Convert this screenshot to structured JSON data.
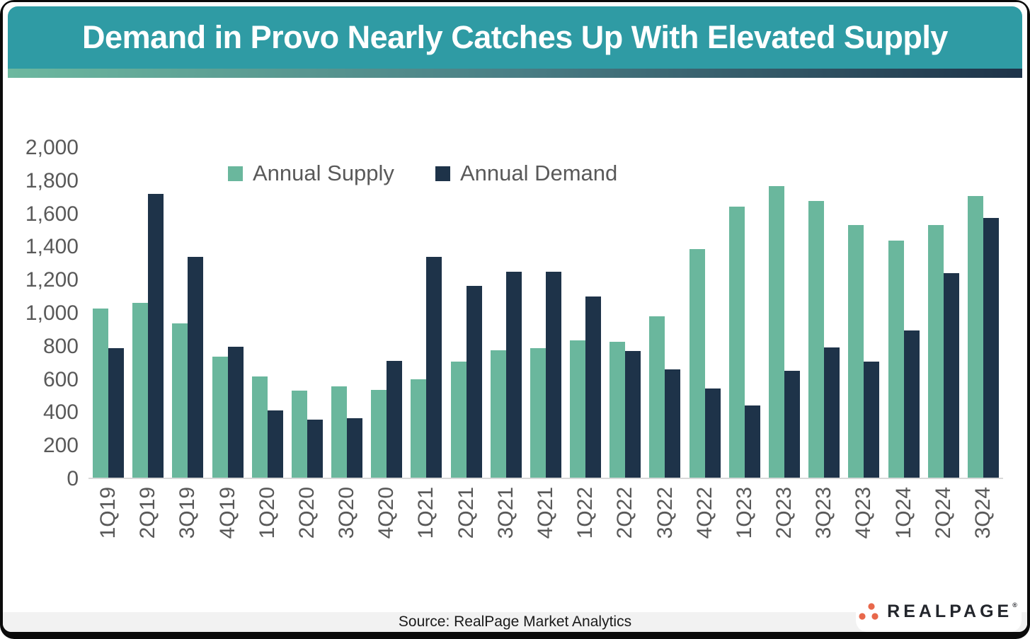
{
  "header": {
    "title": "Demand in Provo Nearly Catches Up With Elevated Supply",
    "banner_color": "#2F9BA4",
    "gradient_from": "#6CB89F",
    "gradient_to": "#1E3349"
  },
  "chart_data": {
    "type": "bar",
    "title": "Demand in Provo Nearly Catches Up With Elevated Supply",
    "xlabel": "",
    "ylabel": "",
    "ylim": [
      0,
      2000
    ],
    "ytick_step": 200,
    "grid": false,
    "legend_position": "top-center",
    "categories": [
      "1Q19",
      "2Q19",
      "3Q19",
      "4Q19",
      "1Q20",
      "2Q20",
      "3Q20",
      "4Q20",
      "1Q21",
      "2Q21",
      "3Q21",
      "4Q21",
      "1Q22",
      "2Q22",
      "3Q22",
      "4Q22",
      "1Q23",
      "2Q23",
      "3Q23",
      "4Q23",
      "1Q24",
      "2Q24",
      "3Q24"
    ],
    "series": [
      {
        "name": "Annual Supply",
        "color": "#6AB79D",
        "values": [
          1020,
          1055,
          930,
          730,
          610,
          525,
          550,
          530,
          595,
          700,
          770,
          780,
          830,
          820,
          975,
          1380,
          1635,
          1760,
          1670,
          1525,
          1430,
          1525,
          1700
        ]
      },
      {
        "name": "Annual Demand",
        "color": "#1E3349",
        "values": [
          780,
          1715,
          1335,
          790,
          405,
          350,
          360,
          705,
          1335,
          1160,
          1245,
          1245,
          1095,
          765,
          655,
          540,
          435,
          645,
          785,
          700,
          890,
          1235,
          1570
        ]
      }
    ]
  },
  "footer": {
    "source": "Source: RealPage Market Analytics"
  },
  "logo": {
    "brand": "REALPAGE",
    "registered_mark": "®",
    "dot_color": "#E8684B"
  }
}
